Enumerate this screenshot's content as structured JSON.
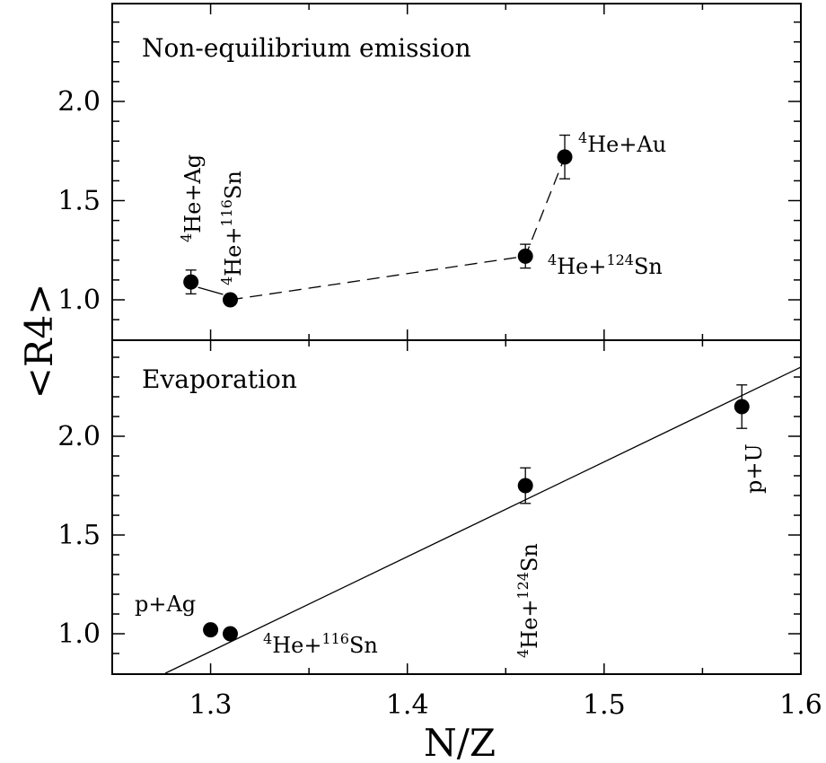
{
  "chart_data": [
    {
      "type": "scatter",
      "panel": "top",
      "title": "Non-equilibrium emission",
      "xlabel": "N/Z",
      "ylabel": "<R4>",
      "xlim": [
        1.25,
        1.6
      ],
      "ylim": [
        0.8,
        2.5
      ],
      "y_ticks": [
        "1.0",
        "1.5",
        "2.0"
      ],
      "points": [
        {
          "x": 1.29,
          "y": 1.09,
          "yerr": 0.06,
          "label": "He+Ag",
          "sup": "4",
          "sup2": ""
        },
        {
          "x": 1.31,
          "y": 1.0,
          "yerr": 0.02,
          "label": "He+",
          "sup": "4",
          "sup2": "116",
          "tail": "Sn"
        },
        {
          "x": 1.46,
          "y": 1.22,
          "yerr": 0.06,
          "label": "He+",
          "sup": "4",
          "sup2": "124",
          "tail": "Sn"
        },
        {
          "x": 1.48,
          "y": 1.72,
          "yerr": 0.11,
          "label": "He+Au",
          "sup": "4",
          "sup2": ""
        }
      ],
      "line_style": "dashed"
    },
    {
      "type": "scatter",
      "panel": "bottom",
      "title": "Evaporation",
      "xlabel": "N/Z",
      "ylabel": "<R4>",
      "xlim": [
        1.25,
        1.6
      ],
      "ylim": [
        0.8,
        2.4
      ],
      "y_ticks": [
        "1.0",
        "1.5",
        "2.0"
      ],
      "x_ticks": [
        "1.3",
        "1.4",
        "1.5",
        "1.6"
      ],
      "points": [
        {
          "x": 1.3,
          "y": 1.02,
          "yerr": 0.02,
          "label": "p+Ag"
        },
        {
          "x": 1.31,
          "y": 1.0,
          "yerr": 0.02,
          "label": "He+",
          "sup": "4",
          "sup2": "116",
          "tail": "Sn"
        },
        {
          "x": 1.46,
          "y": 1.75,
          "yerr": 0.09,
          "label": "He+",
          "sup": "4",
          "sup2": "124",
          "tail": "Sn"
        },
        {
          "x": 1.57,
          "y": 2.15,
          "yerr": 0.11,
          "label": "p+U"
        }
      ],
      "fit_line": {
        "x": [
          1.277,
          1.6
        ],
        "y": [
          0.8,
          2.35
        ]
      }
    }
  ]
}
